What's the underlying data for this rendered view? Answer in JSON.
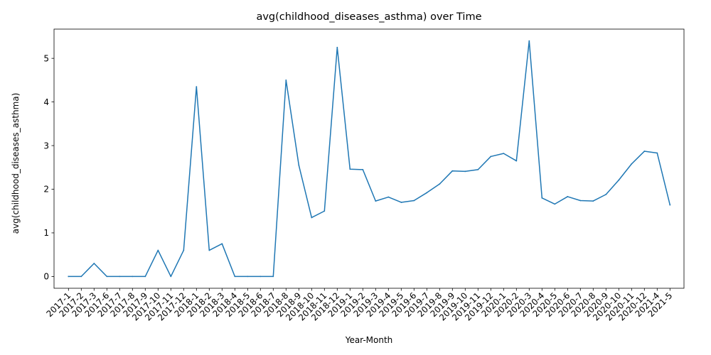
{
  "chart_data": {
    "type": "line",
    "title": "avg(childhood_diseases_asthma) over Time",
    "xlabel": "Year-Month",
    "ylabel": "avg(childhood_diseases_asthma)",
    "ylim": [
      -0.27,
      5.67
    ],
    "yticks": [
      0,
      1,
      2,
      3,
      4,
      5
    ],
    "grid": false,
    "categories": [
      "2017-1",
      "2017-2",
      "2017-3",
      "2017-6",
      "2017-7",
      "2017-8",
      "2017-9",
      "2017-10",
      "2017-11",
      "2017-12",
      "2018-1",
      "2018-2",
      "2018-3",
      "2018-4",
      "2018-5",
      "2018-6",
      "2018-7",
      "2018-8",
      "2018-9",
      "2018-10",
      "2018-11",
      "2018-12",
      "2019-1",
      "2019-2",
      "2019-3",
      "2019-4",
      "2019-5",
      "2019-6",
      "2019-7",
      "2019-8",
      "2019-9",
      "2019-10",
      "2019-11",
      "2019-12",
      "2020-1",
      "2020-2",
      "2020-3",
      "2020-4",
      "2020-5",
      "2020-6",
      "2020-7",
      "2020-8",
      "2020-9",
      "2020-10",
      "2020-11",
      "2020-12",
      "2021-4",
      "2021-5"
    ],
    "series": [
      {
        "color": "#1f77b4",
        "values": [
          0,
          0,
          0.3,
          0,
          0,
          0,
          0,
          0.6,
          0,
          0.6,
          4.35,
          0.6,
          0.75,
          0,
          0,
          0,
          0,
          4.5,
          2.55,
          1.35,
          1.5,
          5.25,
          2.46,
          2.45,
          1.73,
          1.82,
          1.7,
          1.74,
          1.92,
          2.12,
          2.42,
          2.41,
          2.45,
          2.75,
          2.82,
          2.65,
          5.4,
          1.8,
          1.66,
          1.83,
          1.74,
          1.73,
          1.88,
          2.21,
          2.58,
          2.87,
          2.83,
          1.64
        ]
      }
    ]
  }
}
